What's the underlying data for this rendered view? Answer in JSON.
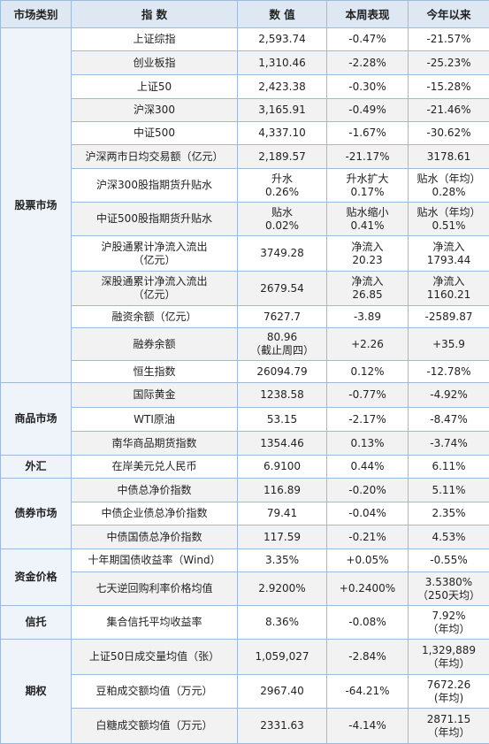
{
  "table": {
    "header": [
      "市场类别",
      "指 数",
      "数 值",
      "本周表现",
      "今年以来"
    ],
    "groups": [
      {
        "category": "股票市场",
        "rows": [
          [
            "上证综指",
            "2,593.74",
            "-0.47%",
            "-21.57%"
          ],
          [
            "创业板指",
            "1,310.46",
            "-2.28%",
            "-25.23%"
          ],
          [
            "上证50",
            "2,423.38",
            "-0.30%",
            "-15.28%"
          ],
          [
            "沪深300",
            "3,165.91",
            "-0.49%",
            "-21.46%"
          ],
          [
            "中证500",
            "4,337.10",
            "-1.67%",
            "-30.62%"
          ],
          [
            "沪深两市日均交易额（亿元）",
            "2,189.57",
            "-21.17%",
            "3178.61"
          ],
          [
            "沪深300股指期货升贴水",
            "升水\n0.26%",
            "升水扩大\n0.17%",
            "贴水（年均）\n0.28%"
          ],
          [
            "中证500股指期货升贴水",
            "贴水\n0.02%",
            "贴水缩小\n0.41%",
            "贴水（年均）\n0.51%"
          ],
          [
            "沪股通累计净流入流出\n（亿元）",
            "3749.28",
            "净流入\n20.23",
            "净流入\n1793.44"
          ],
          [
            "深股通累计净流入流出\n（亿元）",
            "2679.54",
            "净流入\n26.85",
            "净流入\n1160.21"
          ],
          [
            "融资余额（亿元）",
            "7627.7",
            "-3.89",
            "-2589.87"
          ],
          [
            "融券余额",
            "80.96\n（截止周四）",
            "+2.26",
            "+35.9"
          ],
          [
            "恒生指数",
            "26094.79",
            "0.12%",
            "-12.78%"
          ]
        ]
      },
      {
        "category": "商品市场",
        "rows": [
          [
            "国际黄金",
            "1238.58",
            "-0.77%",
            "-4.92%"
          ],
          [
            "WTI原油",
            "53.15",
            "-2.17%",
            "-8.47%"
          ],
          [
            "南华商品期货指数",
            "1354.46",
            "0.13%",
            "-3.74%"
          ]
        ]
      },
      {
        "category": "外汇",
        "rows": [
          [
            "在岸美元兑人民币",
            "6.9100",
            "0.44%",
            "6.11%"
          ]
        ]
      },
      {
        "category": "债券市场",
        "rows": [
          [
            "中债总净价指数",
            "116.89",
            "-0.20%",
            "5.11%"
          ],
          [
            "中债企业债总净价指数",
            "79.41",
            "-0.04%",
            "2.35%"
          ],
          [
            "中债国债总净价指数",
            "117.59",
            "-0.21%",
            "4.53%"
          ]
        ]
      },
      {
        "category": "资金价格",
        "rows": [
          [
            "十年期国债收益率（Wind）",
            "3.35%",
            "+0.05%",
            "-0.55%"
          ],
          [
            "七天逆回购利率价格均值",
            "2.9200%",
            "+0.2400%",
            "3.5380%\n（250天均）"
          ]
        ]
      },
      {
        "category": "信托",
        "rows": [
          [
            "集合信托平均收益率",
            "8.36%",
            "-0.08%",
            "7.92%\n（年均）"
          ]
        ]
      },
      {
        "category": "期权",
        "rows": [
          [
            "上证50日成交量均值（张）",
            "1,059,027",
            "-2.84%",
            "1,329,889\n（年均）"
          ],
          [
            "豆粕成交额均值（万元）",
            "2967.40",
            "-64.21%",
            "7672.26\n(年均)"
          ],
          [
            "白糖成交额均值（万元）",
            "2331.63",
            "-4.14%",
            "2871.15\n（年均）"
          ]
        ]
      }
    ]
  }
}
